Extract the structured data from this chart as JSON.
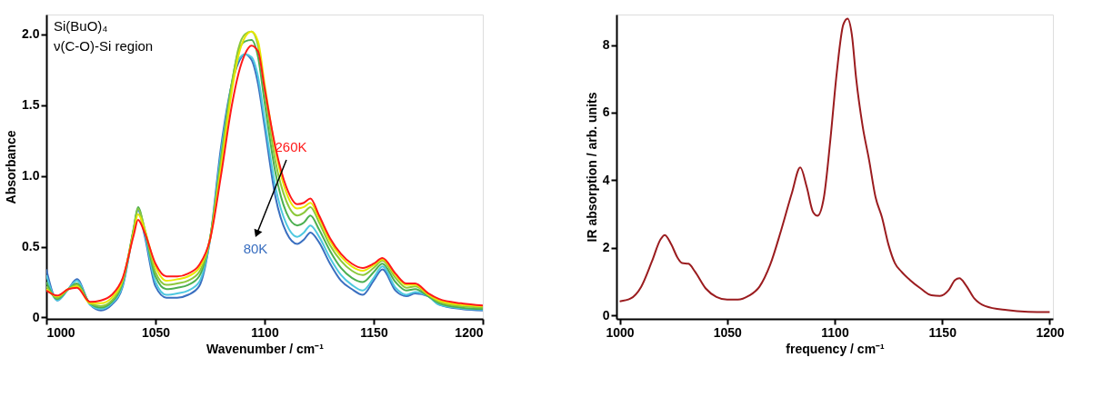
{
  "chart_data": [
    {
      "type": "line",
      "xlabel": "Wavenumber / cm⁻¹",
      "ylabel": "Absorbance",
      "x": [
        1000,
        1005,
        1010,
        1014,
        1020,
        1025,
        1030,
        1035,
        1040,
        1042,
        1045,
        1050,
        1055,
        1060,
        1065,
        1070,
        1075,
        1080,
        1085,
        1088,
        1091,
        1094,
        1097,
        1100,
        1105,
        1110,
        1115,
        1118,
        1121,
        1125,
        1130,
        1135,
        1140,
        1145,
        1150,
        1154,
        1160,
        1165,
        1169,
        1175,
        1180,
        1190,
        1200
      ],
      "series": [
        {
          "color": "#3a6fc0",
          "values": [
            0.34,
            0.12,
            0.2,
            0.27,
            0.09,
            0.05,
            0.09,
            0.22,
            0.62,
            0.76,
            0.58,
            0.22,
            0.14,
            0.14,
            0.16,
            0.22,
            0.55,
            1.2,
            1.65,
            1.8,
            1.86,
            1.82,
            1.65,
            1.35,
            0.85,
            0.6,
            0.52,
            0.55,
            0.6,
            0.53,
            0.38,
            0.26,
            0.2,
            0.16,
            0.26,
            0.34,
            0.19,
            0.15,
            0.17,
            0.15,
            0.09,
            0.06,
            0.05
          ]
        },
        {
          "color": "#4ec8e0",
          "values": [
            0.3,
            0.12,
            0.2,
            0.26,
            0.09,
            0.06,
            0.1,
            0.23,
            0.62,
            0.77,
            0.6,
            0.25,
            0.16,
            0.17,
            0.19,
            0.25,
            0.55,
            1.16,
            1.65,
            1.82,
            1.86,
            1.84,
            1.7,
            1.4,
            0.92,
            0.66,
            0.57,
            0.6,
            0.65,
            0.57,
            0.42,
            0.3,
            0.23,
            0.19,
            0.28,
            0.36,
            0.21,
            0.16,
            0.18,
            0.15,
            0.09,
            0.065,
            0.055
          ]
        },
        {
          "color": "#4caf50",
          "values": [
            0.25,
            0.13,
            0.2,
            0.24,
            0.1,
            0.07,
            0.11,
            0.25,
            0.63,
            0.78,
            0.62,
            0.29,
            0.2,
            0.21,
            0.23,
            0.29,
            0.56,
            1.12,
            1.66,
            1.88,
            1.95,
            1.96,
            1.84,
            1.52,
            1.02,
            0.74,
            0.65,
            0.67,
            0.72,
            0.62,
            0.47,
            0.35,
            0.28,
            0.25,
            0.32,
            0.38,
            0.25,
            0.19,
            0.2,
            0.15,
            0.1,
            0.07,
            0.06
          ]
        },
        {
          "color": "#8cc83c",
          "values": [
            0.22,
            0.14,
            0.2,
            0.23,
            0.1,
            0.08,
            0.12,
            0.26,
            0.62,
            0.77,
            0.63,
            0.32,
            0.23,
            0.24,
            0.26,
            0.32,
            0.56,
            1.1,
            1.65,
            1.9,
            2.0,
            2.02,
            1.92,
            1.6,
            1.1,
            0.82,
            0.72,
            0.74,
            0.78,
            0.67,
            0.51,
            0.4,
            0.33,
            0.3,
            0.35,
            0.4,
            0.28,
            0.21,
            0.22,
            0.16,
            0.11,
            0.08,
            0.07
          ]
        },
        {
          "color": "#e8e800",
          "values": [
            0.2,
            0.15,
            0.2,
            0.22,
            0.1,
            0.1,
            0.14,
            0.27,
            0.6,
            0.73,
            0.62,
            0.36,
            0.26,
            0.27,
            0.29,
            0.35,
            0.55,
            1.05,
            1.6,
            1.85,
            1.98,
            2.02,
            1.95,
            1.65,
            1.18,
            0.88,
            0.77,
            0.78,
            0.81,
            0.7,
            0.54,
            0.43,
            0.36,
            0.33,
            0.37,
            0.41,
            0.3,
            0.23,
            0.23,
            0.16,
            0.12,
            0.09,
            0.08
          ]
        },
        {
          "color": "#ff1a1a",
          "values": [
            0.19,
            0.155,
            0.2,
            0.21,
            0.11,
            0.12,
            0.16,
            0.28,
            0.58,
            0.69,
            0.6,
            0.38,
            0.29,
            0.29,
            0.31,
            0.37,
            0.55,
            1.0,
            1.5,
            1.72,
            1.86,
            1.92,
            1.88,
            1.62,
            1.2,
            0.92,
            0.8,
            0.81,
            0.84,
            0.72,
            0.56,
            0.45,
            0.38,
            0.35,
            0.38,
            0.42,
            0.31,
            0.24,
            0.24,
            0.17,
            0.13,
            0.1,
            0.085
          ]
        }
      ],
      "xlim": [
        1000,
        1200
      ],
      "xticks": [
        1000,
        1050,
        1100,
        1150,
        1200
      ],
      "ylim": [
        -0.01,
        2.14
      ],
      "yticks": [
        {
          "value": 0,
          "label": "0"
        },
        0.5,
        {
          "value": 1,
          "label": "1.0"
        },
        1.5,
        {
          "value": 2,
          "label": "2.0"
        }
      ],
      "annotations": [
        "Si(BuO)₄",
        "ν(C-O)-Si region",
        "260K",
        "80K"
      ]
    },
    {
      "type": "line",
      "xlabel": "frequency / cm⁻¹",
      "ylabel": "IR absorption / arb. units",
      "x": [
        1000,
        1005,
        1010,
        1015,
        1019,
        1021,
        1024,
        1027,
        1029,
        1032,
        1035,
        1040,
        1045,
        1050,
        1055,
        1060,
        1065,
        1070,
        1075,
        1080,
        1084,
        1087,
        1090,
        1092,
        1095,
        1098,
        1101,
        1104,
        1106,
        1108,
        1110,
        1113,
        1116,
        1119,
        1122,
        1125,
        1128,
        1131,
        1135,
        1140,
        1145,
        1149,
        1153,
        1156,
        1158,
        1161,
        1165,
        1170,
        1180,
        1190,
        1200
      ],
      "series": [
        {
          "color": "#9b1c1f",
          "values": [
            0.42,
            0.5,
            0.85,
            1.6,
            2.25,
            2.38,
            2.1,
            1.7,
            1.55,
            1.53,
            1.3,
            0.8,
            0.55,
            0.47,
            0.47,
            0.58,
            0.85,
            1.5,
            2.5,
            3.6,
            4.38,
            3.8,
            3.05,
            2.95,
            3.5,
            5.2,
            7.2,
            8.6,
            8.78,
            8.3,
            7.0,
            5.6,
            4.6,
            3.5,
            2.9,
            2.1,
            1.55,
            1.3,
            1.05,
            0.8,
            0.6,
            0.58,
            0.75,
            1.05,
            1.1,
            0.9,
            0.5,
            0.28,
            0.16,
            0.11,
            0.1
          ]
        }
      ],
      "xlim": [
        998.5,
        1201.5
      ],
      "xticks": [
        1000,
        1050,
        1100,
        1150,
        1200
      ],
      "ylim": [
        -0.1,
        8.9
      ],
      "yticks": [
        0,
        2,
        4,
        6,
        8
      ]
    }
  ]
}
